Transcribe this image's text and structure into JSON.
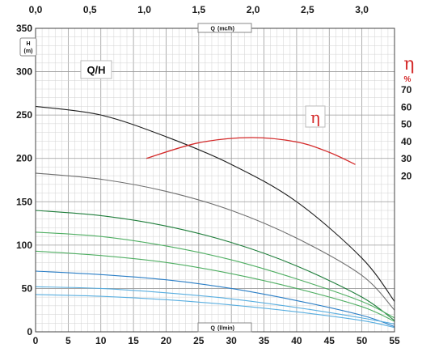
{
  "chart_data": {
    "type": "line",
    "title": "",
    "curve_label": "Q/H",
    "y_label": {
      "main": "H",
      "unit": "(m)"
    },
    "x_label_bottom": {
      "main": "Q",
      "unit": "(l/min)"
    },
    "x_label_top": {
      "main": "Q",
      "unit": "(mc/h)"
    },
    "efficiency_symbol": "η",
    "efficiency_unit": "%",
    "x_bottom": {
      "min": 0,
      "max": 55,
      "ticks": [
        "0",
        "5",
        "10",
        "15",
        "20",
        "25",
        "30",
        "35",
        "40",
        "45",
        "50",
        "55"
      ]
    },
    "x_top": {
      "min": 0,
      "max": 3.3,
      "ticks": [
        "0,0",
        "0,5",
        "1,0",
        "1,5",
        "2,0",
        "2,5",
        "3,0"
      ]
    },
    "y_left": {
      "min": 0,
      "max": 350,
      "ticks": [
        "0",
        "50",
        "100",
        "150",
        "200",
        "250",
        "300",
        "350"
      ]
    },
    "y_right": {
      "ticks": [
        "20",
        "30",
        "40",
        "50",
        "60",
        "70"
      ]
    },
    "grid": true,
    "colors": {
      "black": "#1e1e1e",
      "gray": "#6f6f6f",
      "dark_green": "#1e7d3a",
      "light_green": "#4fae62",
      "blue": "#2a7ec6",
      "light_blue": "#58aee0",
      "efficiency": "#d42a2a"
    },
    "series": [
      {
        "color": "black",
        "x": [
          0,
          10,
          20,
          30,
          40,
          50,
          55
        ],
        "y": [
          260,
          250,
          225,
          193,
          150,
          85,
          35
        ]
      },
      {
        "color": "gray",
        "x": [
          0,
          10,
          20,
          30,
          40,
          50,
          55
        ],
        "y": [
          183,
          176,
          162,
          140,
          108,
          65,
          25
        ]
      },
      {
        "color": "dark_green",
        "x": [
          0,
          10,
          20,
          30,
          40,
          50,
          55
        ],
        "y": [
          140,
          134,
          122,
          103,
          76,
          40,
          13
        ]
      },
      {
        "color": "light_green",
        "x": [
          0,
          10,
          20,
          30,
          40,
          50,
          55
        ],
        "y": [
          115,
          110,
          99,
          83,
          61,
          35,
          16
        ]
      },
      {
        "color": "light_green",
        "x": [
          0,
          10,
          20,
          30,
          40,
          50,
          55
        ],
        "y": [
          93,
          88,
          80,
          67,
          50,
          29,
          12
        ]
      },
      {
        "color": "blue",
        "x": [
          0,
          10,
          20,
          30,
          40,
          50,
          55
        ],
        "y": [
          70,
          66,
          60,
          50,
          36,
          19,
          6
        ]
      },
      {
        "color": "light_blue",
        "x": [
          0,
          10,
          20,
          30,
          40,
          50,
          55
        ],
        "y": [
          52,
          50,
          45,
          38,
          28,
          16,
          9
        ]
      },
      {
        "color": "light_blue",
        "x": [
          0,
          10,
          20,
          30,
          40,
          50,
          55
        ],
        "y": [
          43,
          41,
          37,
          31,
          23,
          13,
          5
        ]
      }
    ],
    "efficiency_curve": {
      "color": "efficiency",
      "x": [
        17,
        25,
        33,
        40,
        45,
        49
      ],
      "y": [
        200,
        218,
        224,
        219,
        207,
        193
      ]
    }
  }
}
